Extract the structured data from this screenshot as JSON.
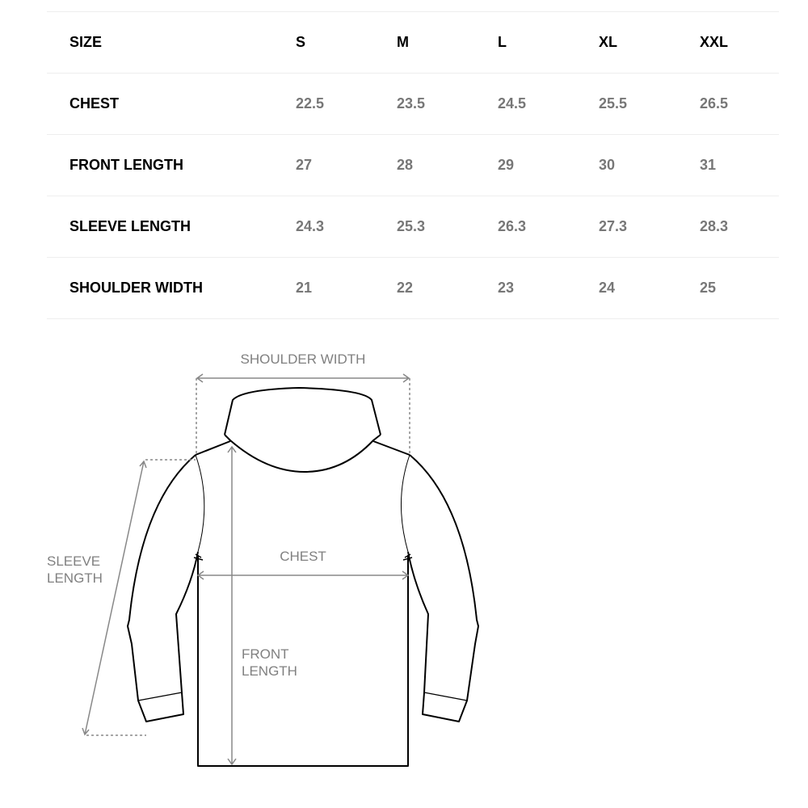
{
  "size_table": {
    "header": {
      "label": "SIZE",
      "sizes": [
        "S",
        "M",
        "L",
        "XL",
        "XXL"
      ]
    },
    "rows": [
      {
        "label": "CHEST",
        "values": [
          "22.5",
          "23.5",
          "24.5",
          "25.5",
          "26.5"
        ]
      },
      {
        "label": "FRONT LENGTH",
        "values": [
          "27",
          "28",
          "29",
          "30",
          "31"
        ]
      },
      {
        "label": "SLEEVE LENGTH",
        "values": [
          "24.3",
          "25.3",
          "26.3",
          "27.3",
          "28.3"
        ]
      },
      {
        "label": "SHOULDER WIDTH",
        "values": [
          "21",
          "22",
          "23",
          "24",
          "25"
        ]
      }
    ]
  },
  "diagram": {
    "shoulder_width": "SHOULDER WIDTH",
    "chest": "CHEST",
    "front_length_1": "FRONT",
    "front_length_2": "LENGTH",
    "sleeve_length_1": "SLEEVE",
    "sleeve_length_2": "LENGTH"
  }
}
